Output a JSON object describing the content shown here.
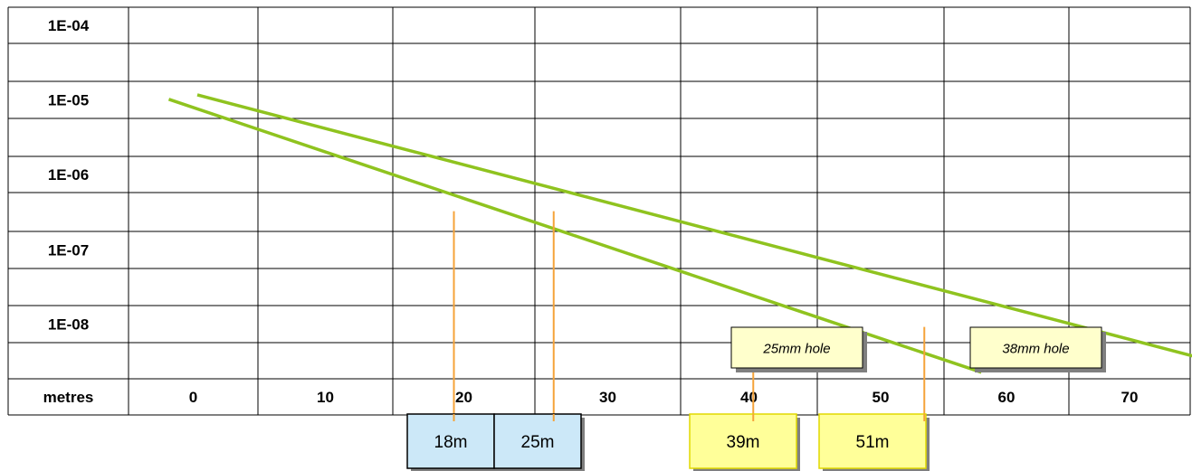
{
  "chart_data": {
    "type": "line",
    "y_scale": "log",
    "grid": true,
    "x_axis_title": "metres",
    "x_tick_labels": [
      "0",
      "10",
      "20",
      "30",
      "40",
      "50",
      "60",
      "70"
    ],
    "y_tick_labels": [
      "1E-04",
      "1E-05",
      "1E-06",
      "1E-07",
      "1E-08"
    ],
    "y_tick_values": [
      0.0001,
      1e-05,
      1e-06,
      1e-07,
      1e-08
    ],
    "xlim": [
      0,
      70
    ],
    "ylim": [
      3.16e-09,
      0.0001
    ],
    "series": [
      {
        "name": "25mm hole",
        "color": "#8fc31f",
        "points": [
          [
            -2,
            1.78e-05
          ],
          [
            55,
            3.89e-09
          ]
        ]
      },
      {
        "name": "38mm hole",
        "color": "#8fc31f",
        "points": [
          [
            0,
            2.04e-05
          ],
          [
            74,
            3.98e-09
          ]
        ]
      }
    ],
    "markers": [
      {
        "x": 18,
        "y": 5.62e-07,
        "label": "18m",
        "group": "25mm hole"
      },
      {
        "x": 25,
        "y": 5.62e-07,
        "label": "25m",
        "group": "38mm hole"
      },
      {
        "x": 39,
        "y": 1.58e-08,
        "label": "39m",
        "group": "25mm hole"
      },
      {
        "x": 51,
        "y": 1.58e-08,
        "label": "51m",
        "group": "38mm hole"
      }
    ],
    "marker_line_color": "#f5a33a",
    "box_colors": {
      "blue_fill": "#cce8f8",
      "yellow_fill": "#ffff99",
      "tag_fill": "#ffffcc",
      "shadow": "#7f7f7f"
    }
  }
}
